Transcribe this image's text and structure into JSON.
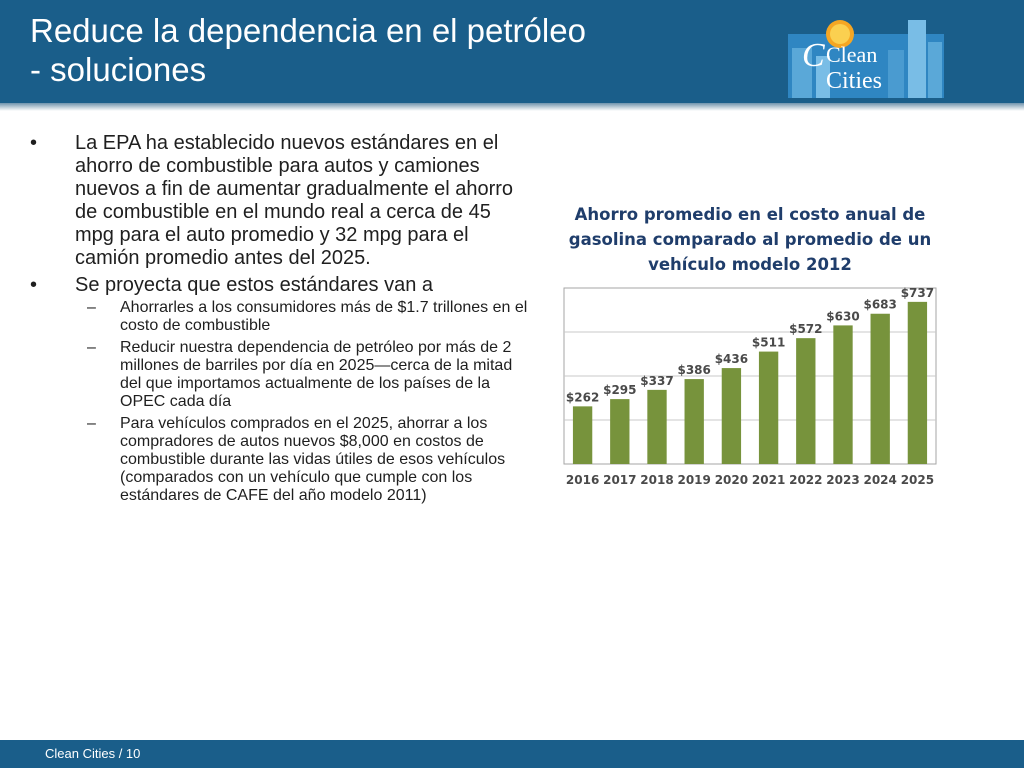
{
  "slide": {
    "title": "Reduce la dependencia en el petróleo - soluciones",
    "logo": {
      "line1": "Clean",
      "line2": "Cities"
    },
    "bullets": [
      {
        "text": "La EPA ha establecido nuevos estándares en el ahorro de combustible para autos y camiones nuevos a fin de aumentar gradualmente el ahorro de combustible en el mundo real a cerca de 45 mpg para el auto promedio y 32 mpg para el camión promedio antes del 2025."
      },
      {
        "text": "Se proyecta que estos estándares van a",
        "sub": [
          "Ahorrarles a los consumidores más de $1.7 trillones en el costo de combustible",
          "Reducir nuestra dependencia de petróleo por más de 2 millones de barriles por día en 2025—cerca de la mitad del que importamos actualmente de los países de la OPEC cada día",
          "Para vehículos comprados en el 2025, ahorrar a los compradores de autos nuevos $8,000 en costos de combustible durante las vidas útiles de esos vehículos (comparados con un vehículo que cumple con los estándares de CAFE del año modelo 2011)"
        ]
      }
    ],
    "bullet_symbol": "•",
    "sub_symbol": "–",
    "footer": "Clean Cities  /  10"
  },
  "chart_data": {
    "type": "bar",
    "title_lines": [
      "Ahorro promedio en el costo anual de",
      "gasolina comparado al promedio de un",
      "vehículo modelo 2012"
    ],
    "categories": [
      "2016",
      "2017",
      "2018",
      "2019",
      "2020",
      "2021",
      "2022",
      "2023",
      "2024",
      "2025"
    ],
    "values": [
      262,
      295,
      337,
      386,
      436,
      511,
      572,
      630,
      683,
      737
    ],
    "data_labels": [
      "$262",
      "$295",
      "$337",
      "$386",
      "$436",
      "$511",
      "$572",
      "$630",
      "$683",
      "$737"
    ],
    "ylim": [
      0,
      800
    ],
    "grid": true,
    "bar_color": "#77933c"
  },
  "colors": {
    "header_bg": "#1a5e8a",
    "chart_title": "#1f3d6b"
  }
}
